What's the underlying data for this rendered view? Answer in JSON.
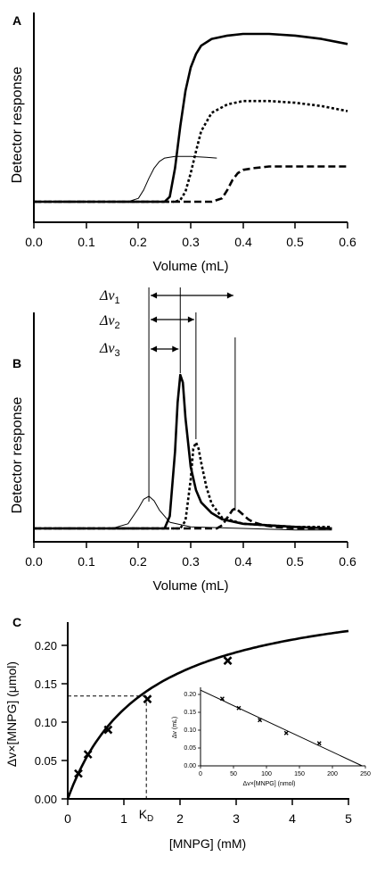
{
  "colors": {
    "ink": "#000000",
    "background": "#ffffff"
  },
  "panels": [
    {
      "id": "A",
      "panel_label": "A",
      "xlabel": "Volume (mL)",
      "ylabel": "Detector response",
      "x_ticks": [
        "0.0",
        "0.1",
        "0.2",
        "0.3",
        "0.4",
        "0.5",
        "0.6"
      ]
    },
    {
      "id": "B",
      "panel_label": "B",
      "xlabel": "Volume (mL)",
      "ylabel": "Detector response",
      "x_ticks": [
        "0.0",
        "0.1",
        "0.2",
        "0.3",
        "0.4",
        "0.5",
        "0.6"
      ],
      "annotations": [
        {
          "delta": "Δv",
          "sub": "1"
        },
        {
          "delta": "Δv",
          "sub": "2"
        },
        {
          "delta": "Δv",
          "sub": "3"
        }
      ]
    },
    {
      "id": "C",
      "panel_label": "C",
      "xlabel": "[MNPG] (mM)",
      "ylabel": "Δv×[MNPG] (μmol)",
      "kd_label": "K",
      "kd_sub": "D",
      "x_ticks": [
        "0",
        "1",
        "2",
        "3",
        "4",
        "5"
      ],
      "y_ticks": [
        "0.00",
        "0.05",
        "0.10",
        "0.15",
        "0.20"
      ],
      "inset": {
        "xlabel": "Δv×[MNPG] (nmol)",
        "ylabel": "Δv (mL)",
        "x_ticks": [
          "0",
          "50",
          "100",
          "150",
          "200",
          "250"
        ],
        "y_ticks": [
          "0.00",
          "0.05",
          "0.10",
          "0.15",
          "0.20"
        ]
      }
    }
  ],
  "chart_data": [
    {
      "type": "line",
      "panel": "A",
      "xlim": [
        0,
        0.6
      ],
      "y_axis_numbered": false,
      "series": [
        {
          "style": "thin solid",
          "x": [
            0.0,
            0.18,
            0.2,
            0.21,
            0.22,
            0.23,
            0.24,
            0.25,
            0.27,
            0.3,
            0.33,
            0.35
          ],
          "y": [
            0.0,
            0.0,
            0.02,
            0.07,
            0.14,
            0.2,
            0.24,
            0.26,
            0.27,
            0.27,
            0.265,
            0.26
          ]
        },
        {
          "style": "thick solid",
          "x": [
            0.0,
            0.25,
            0.26,
            0.27,
            0.28,
            0.29,
            0.3,
            0.31,
            0.32,
            0.34,
            0.37,
            0.4,
            0.45,
            0.5,
            0.55,
            0.6
          ],
          "y": [
            0.0,
            0.0,
            0.03,
            0.2,
            0.45,
            0.66,
            0.8,
            0.88,
            0.93,
            0.97,
            0.99,
            1.0,
            1.0,
            0.99,
            0.97,
            0.94
          ]
        },
        {
          "style": "thick dotted",
          "x": [
            0.0,
            0.27,
            0.28,
            0.29,
            0.3,
            0.31,
            0.32,
            0.34,
            0.37,
            0.4,
            0.45,
            0.5,
            0.55,
            0.6
          ],
          "y": [
            0.0,
            0.0,
            0.01,
            0.06,
            0.17,
            0.3,
            0.42,
            0.53,
            0.58,
            0.6,
            0.6,
            0.59,
            0.57,
            0.54
          ]
        },
        {
          "style": "thick dashed",
          "x": [
            0.0,
            0.34,
            0.36,
            0.37,
            0.38,
            0.39,
            0.4,
            0.42,
            0.45,
            0.5,
            0.55,
            0.6
          ],
          "y": [
            0.0,
            0.0,
            0.02,
            0.07,
            0.13,
            0.17,
            0.19,
            0.2,
            0.21,
            0.21,
            0.21,
            0.21
          ]
        }
      ]
    },
    {
      "type": "line",
      "panel": "B",
      "xlim": [
        0,
        0.6
      ],
      "y_axis_numbered": false,
      "series": [
        {
          "style": "thin solid",
          "x": [
            0.0,
            0.15,
            0.18,
            0.2,
            0.21,
            0.22,
            0.23,
            0.24,
            0.26,
            0.3,
            0.4,
            0.5,
            0.57
          ],
          "y": [
            0.0,
            0.0,
            0.03,
            0.13,
            0.19,
            0.21,
            0.18,
            0.12,
            0.04,
            0.01,
            0.0,
            -0.01,
            -0.01
          ]
        },
        {
          "style": "thick solid",
          "x": [
            0.0,
            0.25,
            0.26,
            0.27,
            0.275,
            0.28,
            0.285,
            0.29,
            0.3,
            0.31,
            0.32,
            0.34,
            0.36,
            0.4,
            0.5,
            0.57
          ],
          "y": [
            0.0,
            0.0,
            0.08,
            0.5,
            0.82,
            1.0,
            0.95,
            0.72,
            0.4,
            0.25,
            0.17,
            0.1,
            0.06,
            0.03,
            0.01,
            0.0
          ]
        },
        {
          "style": "thick dotted",
          "x": [
            0.0,
            0.28,
            0.29,
            0.3,
            0.305,
            0.31,
            0.315,
            0.32,
            0.33,
            0.34,
            0.36,
            0.4,
            0.5,
            0.57
          ],
          "y": [
            0.0,
            0.0,
            0.05,
            0.32,
            0.52,
            0.56,
            0.52,
            0.43,
            0.27,
            0.16,
            0.07,
            0.03,
            0.01,
            0.01
          ]
        },
        {
          "style": "thick dashed",
          "x": [
            0.0,
            0.35,
            0.36,
            0.37,
            0.38,
            0.385,
            0.39,
            0.4,
            0.41,
            0.42,
            0.44,
            0.46,
            0.5,
            0.57
          ],
          "y": [
            0.0,
            0.0,
            0.02,
            0.07,
            0.12,
            0.13,
            0.12,
            0.09,
            0.06,
            0.04,
            0.02,
            0.01,
            0.0,
            0.0
          ]
        }
      ],
      "markers_x": [
        0.22,
        0.28,
        0.31,
        0.385
      ]
    },
    {
      "type": "scatter",
      "panel": "C",
      "xlim": [
        0,
        5
      ],
      "ylim": [
        0,
        0.22
      ],
      "points": {
        "x": [
          0.19,
          0.36,
          0.72,
          1.42,
          2.85
        ],
        "y": [
          0.033,
          0.058,
          0.09,
          0.13,
          0.18
        ]
      },
      "fit": {
        "model": "saturation",
        "bmax": 0.28,
        "kd": 1.4
      },
      "kd_x": 1.4,
      "kd_y": 0.134
    },
    {
      "type": "scatter",
      "panel": "C-inset",
      "xlim": [
        0,
        250
      ],
      "ylim": [
        0,
        0.22
      ],
      "points": {
        "x": [
          33,
          58,
          90,
          130,
          180
        ],
        "y": [
          0.188,
          0.162,
          0.128,
          0.092,
          0.063
        ]
      },
      "fit": {
        "x": [
          0,
          245
        ],
        "y": [
          0.212,
          0.0
        ]
      }
    }
  ]
}
